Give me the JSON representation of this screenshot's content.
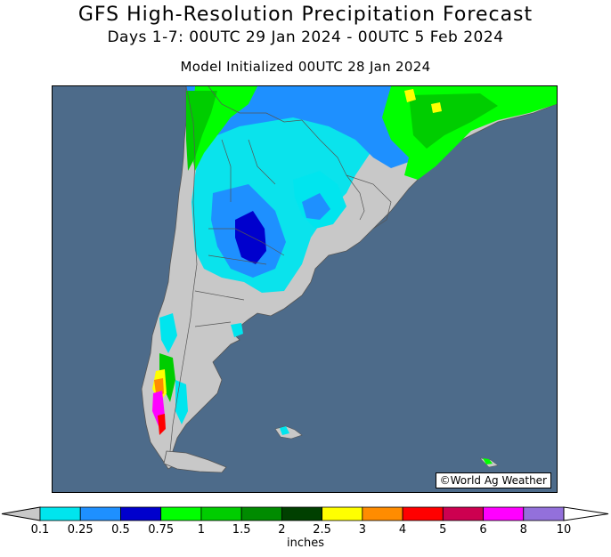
{
  "header": {
    "title": "GFS High-Resolution Precipitation Forecast",
    "subtitle": "Days 1-7: 00UTC 29 Jan 2024 - 00UTC 5 Feb 2024",
    "init": "Model Initialized 00UTC 28 Jan 2024"
  },
  "map": {
    "credit": "©World Ag Weather",
    "ocean_color": "#4d6b8a",
    "land_dry_color": "#c8c8c8"
  },
  "legend": {
    "units": "inches",
    "ticks": [
      "0.1",
      "0.25",
      "0.5",
      "0.75",
      "1",
      "1.5",
      "2",
      "2.5",
      "3",
      "4",
      "5",
      "6",
      "8",
      "10"
    ],
    "colors": [
      "#00e5ee",
      "#1e90ff",
      "#0000cd",
      "#00ff00",
      "#00cd00",
      "#008b00",
      "#004000",
      "#ffff00",
      "#ff8c00",
      "#ff0000",
      "#cd0050",
      "#ff00ff",
      "#9370db"
    ]
  }
}
